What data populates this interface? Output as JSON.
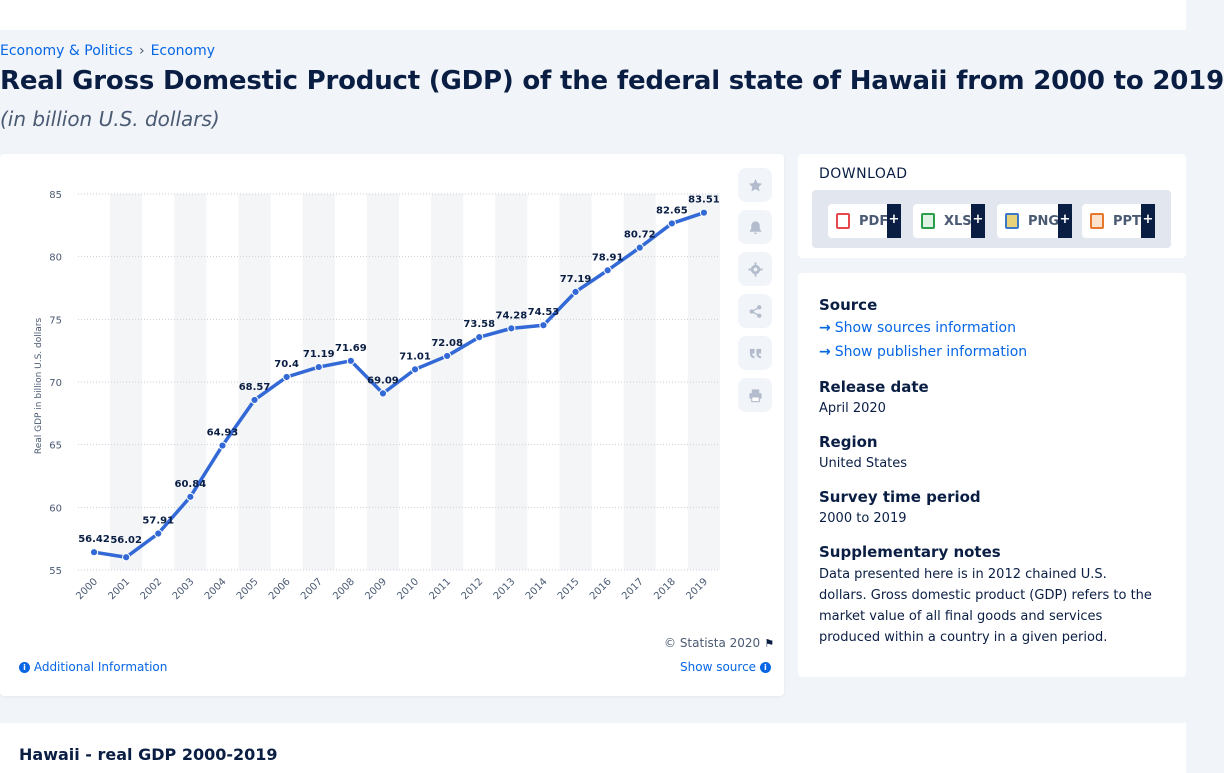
{
  "breadcrumb": {
    "items": [
      "Economy & Politics",
      "Economy"
    ]
  },
  "title": "Real Gross Domestic Product (GDP) of the federal state of Hawaii from 2000 to 2019",
  "subtitle": "(in billion U.S. dollars)",
  "chart_data": {
    "type": "line",
    "categories": [
      "2000",
      "2001",
      "2002",
      "2003",
      "2004",
      "2005",
      "2006",
      "2007",
      "2008",
      "2009",
      "2010",
      "2011",
      "2012",
      "2013",
      "2014",
      "2015",
      "2016",
      "2017",
      "2018",
      "2019"
    ],
    "values": [
      56.42,
      56.02,
      57.91,
      60.84,
      64.93,
      68.57,
      70.4,
      71.19,
      71.69,
      69.09,
      71.01,
      72.08,
      73.58,
      74.28,
      74.53,
      77.19,
      78.91,
      80.72,
      82.65,
      83.51
    ],
    "value_labels": [
      "56.42",
      "56.02",
      "57.91",
      "60.84",
      "64.93",
      "68.57",
      "70.4",
      "71.19",
      "71.69",
      "69.09",
      "71.01",
      "72.08",
      "73.58",
      "74.28",
      "74.53",
      "77.19",
      "78.91",
      "80.72",
      "82.65",
      "83.51"
    ],
    "ylabel": "Real GDP in billion U.S. dollars",
    "xlabel": "",
    "ylim": [
      55,
      85
    ],
    "yticks": [
      55,
      60,
      65,
      70,
      75,
      80,
      85
    ],
    "grid": true,
    "line_color": "#3369d6",
    "band_color": "#f4f5f7"
  },
  "chart_footer": {
    "copyright": "© Statista 2020",
    "additional_info": "Additional Information",
    "show_source": "Show source"
  },
  "side_actions": [
    "star-icon",
    "bell-icon",
    "gear-icon",
    "share-icon",
    "quote-icon",
    "print-icon"
  ],
  "download": {
    "title": "DOWNLOAD",
    "buttons": [
      {
        "label": "PDF",
        "color": "#e5484d"
      },
      {
        "label": "XLS",
        "color": "#2a9d4b"
      },
      {
        "label": "PNG",
        "color": "#3a78c9"
      },
      {
        "label": "PPT",
        "color": "#e8772e"
      }
    ],
    "plus": "+"
  },
  "meta": {
    "source_heading": "Source",
    "show_sources": "Show sources information",
    "show_publisher": "Show publisher information",
    "release_heading": "Release date",
    "release_value": "April 2020",
    "region_heading": "Region",
    "region_value": "United States",
    "survey_heading": "Survey time period",
    "survey_value": "2000 to 2019",
    "notes_heading": "Supplementary notes",
    "notes_value": "Data presented here is in 2012 chained U.S. dollars. Gross domestic product (GDP) refers to the market value of all final goods and services produced within a country in a given period."
  },
  "bottom": {
    "title": "Hawaii - real GDP 2000-2019"
  }
}
